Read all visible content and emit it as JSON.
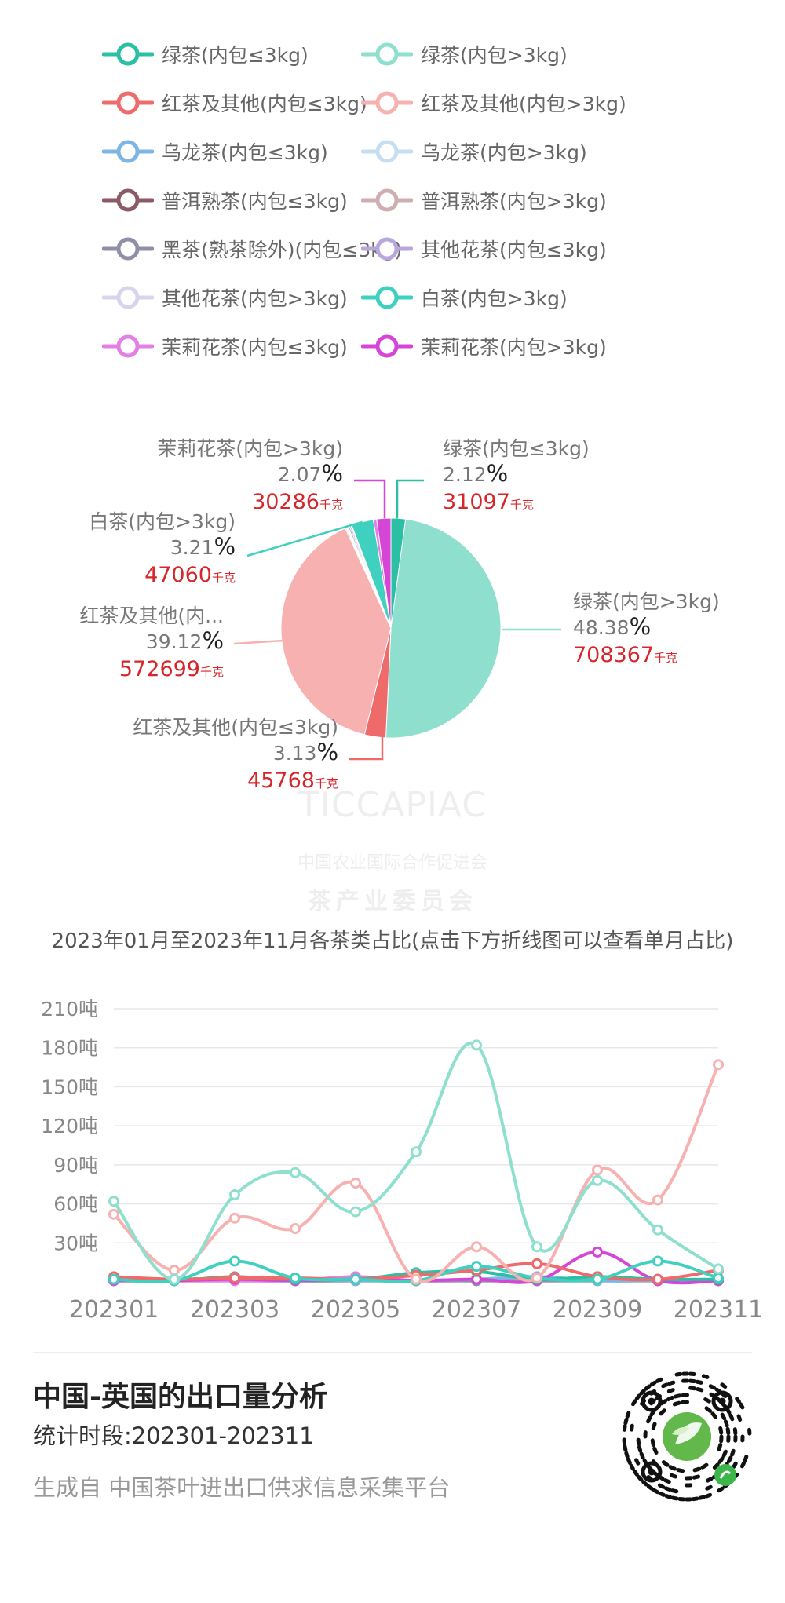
{
  "legend": [
    {
      "label": "绿茶(内包≤3kg)",
      "color": "#2bbfa4"
    },
    {
      "label": "绿茶(内包>3kg)",
      "color": "#8fdfcf"
    },
    {
      "label": "红茶及其他(内包≤3kg)",
      "color": "#ef6b6b"
    },
    {
      "label": "红茶及其他(内包>3kg)",
      "color": "#f7b1b1"
    },
    {
      "label": "乌龙茶(内包≤3kg)",
      "color": "#7fb5e3"
    },
    {
      "label": "乌龙茶(内包>3kg)",
      "color": "#c5def2"
    },
    {
      "label": "普洱熟茶(内包≤3kg)",
      "color": "#8b5a66"
    },
    {
      "label": "普洱熟茶(内包>3kg)",
      "color": "#cfaeb2"
    },
    {
      "label": "黑茶(熟茶除外)(内包≤3kg)",
      "color": "#8f8fa6"
    },
    {
      "label": "其他花茶(内包≤3kg)",
      "color": "#b9a6dd"
    },
    {
      "label": "其他花茶(内包>3kg)",
      "color": "#d9d4ec"
    },
    {
      "label": "白茶(内包>3kg)",
      "color": "#3fd0c0"
    },
    {
      "label": "茉莉花茶(内包≤3kg)",
      "color": "#e37fe6"
    },
    {
      "label": "茉莉花茶(内包>3kg)",
      "color": "#d646d6"
    }
  ],
  "pie_labels": [
    {
      "name": "茉莉花茶(内包>3kg)",
      "pct": "2.07",
      "pct_symbol": "%",
      "value": "30286",
      "unit": "千克"
    },
    {
      "name": "绿茶(内包≤3kg)",
      "pct": "2.12",
      "pct_symbol": "%",
      "value": "31097",
      "unit": "千克"
    },
    {
      "name": "白茶(内包>3kg)",
      "pct": "3.21",
      "pct_symbol": "%",
      "value": "47060",
      "unit": "千克"
    },
    {
      "name": "绿茶(内包>3kg)",
      "pct": "48.38",
      "pct_symbol": "%",
      "value": "708367",
      "unit": "千克"
    },
    {
      "name": "红茶及其他(内...",
      "pct": "39.12",
      "pct_symbol": "%",
      "value": "572699",
      "unit": "千克"
    },
    {
      "name": "红茶及其他(内包≤3kg)",
      "pct": "3.13",
      "pct_symbol": "%",
      "value": "45768",
      "unit": "千克"
    }
  ],
  "line_title": "2023年01月至2023年11月各茶类占比(点击下方折线图可以查看单月占比)",
  "report": {
    "title": "中国-英国的出口量分析",
    "period": "统计时段:202301-202311",
    "source": "生成自 中国茶叶进出口供求信息采集平台"
  },
  "watermark": {
    "logo": "TICCAPIAC",
    "line1": "中国农业国际合作促进会",
    "line2": "茶产业委员会"
  },
  "chart_data": [
    {
      "type": "pie",
      "unit": "千克",
      "slices": [
        {
          "name": "绿茶(内包≤3kg)",
          "value": 31097,
          "pct": 2.12,
          "color": "#2bbfa4"
        },
        {
          "name": "绿茶(内包>3kg)",
          "value": 708367,
          "pct": 48.38,
          "color": "#8fdfcf"
        },
        {
          "name": "红茶及其他(内包≤3kg)",
          "value": 45768,
          "pct": 3.13,
          "color": "#ef6b6b"
        },
        {
          "name": "红茶及其他(内包>3kg)",
          "value": 572699,
          "pct": 39.12,
          "color": "#f7b1b1"
        },
        {
          "name": "乌龙茶(内包≤3kg)",
          "value": 2200,
          "pct": 0.15,
          "color": "#7fb5e3"
        },
        {
          "name": "乌龙茶(内包>3kg)",
          "value": 1500,
          "pct": 0.1,
          "color": "#c5def2"
        },
        {
          "name": "普洱熟茶(内包≤3kg)",
          "value": 1500,
          "pct": 0.1,
          "color": "#8b5a66"
        },
        {
          "name": "普洱熟茶(内包>3kg)",
          "value": 1500,
          "pct": 0.1,
          "color": "#cfaeb2"
        },
        {
          "name": "黑茶(熟茶除外)(内包≤3kg)",
          "value": 3000,
          "pct": 0.2,
          "color": "#8f8fa6"
        },
        {
          "name": "其他花茶(内包≤3kg)",
          "value": 3000,
          "pct": 0.2,
          "color": "#b9a6dd"
        },
        {
          "name": "其他花茶(内包>3kg)",
          "value": 2200,
          "pct": 0.15,
          "color": "#d9d4ec"
        },
        {
          "name": "白茶(内包>3kg)",
          "value": 47060,
          "pct": 3.21,
          "color": "#3fd0c0"
        },
        {
          "name": "茉莉花茶(内包≤3kg)",
          "value": 7300,
          "pct": 0.5,
          "color": "#e37fe6"
        },
        {
          "name": "茉莉花茶(内包>3kg)",
          "value": 30286,
          "pct": 2.07,
          "color": "#d646d6"
        }
      ]
    },
    {
      "type": "line",
      "x": [
        "202301",
        "202302",
        "202303",
        "202304",
        "202305",
        "202306",
        "202307",
        "202308",
        "202309",
        "202310",
        "202311"
      ],
      "x_tick_labels": [
        "202301",
        "202303",
        "202305",
        "202307",
        "202309",
        "202311"
      ],
      "y_tick_values": [
        30,
        60,
        90,
        120,
        150,
        180,
        210
      ],
      "y_tick_suffix": "吨",
      "ylim": [
        0,
        210
      ],
      "grid": true,
      "series": [
        {
          "name": "绿茶(内包>3kg)",
          "color": "#8fdfcf",
          "values": [
            62,
            2,
            67,
            84,
            54,
            100,
            182,
            27,
            78,
            40,
            10
          ]
        },
        {
          "name": "红茶及其他(内包>3kg)",
          "color": "#f7b1b1",
          "values": [
            52,
            9,
            49,
            41,
            76,
            2,
            27,
            3,
            86,
            63,
            167
          ]
        },
        {
          "name": "白茶(内包>3kg)",
          "color": "#3fd0c0",
          "values": [
            2,
            1,
            16,
            3,
            2,
            1,
            12,
            3,
            2,
            16,
            3
          ]
        },
        {
          "name": "红茶及其他(内包≤3kg)",
          "color": "#ef6b6b",
          "values": [
            4,
            2,
            3,
            3,
            2,
            5,
            9,
            14,
            4,
            2,
            9
          ]
        },
        {
          "name": "绿茶(内包≤3kg)",
          "color": "#2bbfa4",
          "values": [
            3,
            2,
            3,
            2,
            2,
            7,
            8,
            2,
            4,
            2,
            2
          ]
        },
        {
          "name": "茉莉花茶(内包>3kg)",
          "color": "#d646d6",
          "values": [
            1,
            1,
            2,
            1,
            2,
            1,
            2,
            1,
            23,
            1,
            1
          ]
        },
        {
          "name": "乌龙茶(内包≤3kg)",
          "color": "#7fb5e3",
          "values": [
            1,
            1,
            3,
            2,
            1,
            1,
            2,
            4,
            1,
            1,
            1
          ]
        },
        {
          "name": "黑茶(熟茶除外)(内包≤3kg)",
          "color": "#8f8fa6",
          "values": [
            2,
            1,
            4,
            1,
            1,
            1,
            1,
            1,
            1,
            1,
            1
          ]
        },
        {
          "name": "茉莉花茶(内包≤3kg)",
          "color": "#e37fe6",
          "values": [
            1,
            1,
            1,
            1,
            4,
            1,
            1,
            1,
            1,
            1,
            1
          ]
        },
        {
          "name": "其他花茶(内包≤3kg)",
          "color": "#b9a6dd",
          "values": [
            1,
            1,
            1,
            1,
            1,
            1,
            1,
            1,
            1,
            1,
            1
          ]
        }
      ]
    }
  ]
}
